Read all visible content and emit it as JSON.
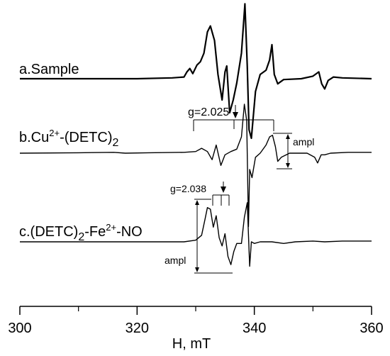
{
  "chart_data": {
    "type": "line",
    "title": "",
    "xlabel": "H, mT",
    "ylabel": "",
    "xlim": [
      300,
      360
    ],
    "x_ticks": [
      300,
      320,
      340,
      360
    ],
    "x_tick_labels": [
      "300",
      "320",
      "340",
      "360"
    ],
    "grid": false,
    "legend": "none",
    "series": [
      {
        "name": "a.Sample",
        "label_parts": [
          "a.Sample"
        ],
        "points": [
          [
            300,
            0
          ],
          [
            310,
            0
          ],
          [
            320,
            0
          ],
          [
            326,
            0.01
          ],
          [
            328,
            0.02
          ],
          [
            328.5,
            0.08
          ],
          [
            329,
            0.12
          ],
          [
            329.5,
            0.06
          ],
          [
            330.2,
            0.16
          ],
          [
            330.8,
            0.2
          ],
          [
            331.4,
            0.3
          ],
          [
            332,
            0.55
          ],
          [
            332.5,
            0.62
          ],
          [
            333.2,
            0.45
          ],
          [
            333.8,
            0.05
          ],
          [
            334.5,
            -0.25
          ],
          [
            335,
            0.08
          ],
          [
            335.3,
            0.15
          ],
          [
            335.8,
            -0.4
          ],
          [
            336.4,
            -0.25
          ],
          [
            337,
            -0.05
          ],
          [
            337.8,
            0.3
          ],
          [
            338.4,
            0.88
          ],
          [
            338.8,
            0.15
          ],
          [
            339.1,
            -0.6
          ],
          [
            339.5,
            -0.7
          ],
          [
            340.2,
            -0.15
          ],
          [
            341,
            0.05
          ],
          [
            342,
            0.1
          ],
          [
            342.6,
            0.22
          ],
          [
            343,
            0.4
          ],
          [
            343.4,
            0.05
          ],
          [
            344,
            -0.06
          ],
          [
            345,
            -0.01
          ],
          [
            348,
            0
          ],
          [
            350,
            0.03
          ],
          [
            351,
            0.08
          ],
          [
            351.5,
            -0.06
          ],
          [
            352,
            -0.12
          ],
          [
            352.6,
            -0.02
          ],
          [
            353.5,
            0.02
          ],
          [
            355,
            0.01
          ],
          [
            360,
            0
          ]
        ]
      },
      {
        "name": "b.Cu2+-(DETC)2",
        "label_parts": [
          "b.Cu",
          "2+",
          "-(DETC)",
          "2"
        ],
        "points": [
          [
            300,
            0
          ],
          [
            310,
            0.005
          ],
          [
            316,
            0.01
          ],
          [
            318,
            0
          ],
          [
            322,
            0.005
          ],
          [
            328,
            0.01
          ],
          [
            330,
            0.02
          ],
          [
            331,
            0.06
          ],
          [
            332,
            0.02
          ],
          [
            332.8,
            -0.08
          ],
          [
            333.5,
            0.1
          ],
          [
            334.3,
            -0.15
          ],
          [
            335,
            -0.02
          ],
          [
            336,
            0.02
          ],
          [
            337,
            0.05
          ],
          [
            337.8,
            0.2
          ],
          [
            338.3,
            0.6
          ],
          [
            338.7,
            0.4
          ],
          [
            339,
            -0.9
          ],
          [
            339.2,
            -0.2
          ],
          [
            339.6,
            -0.3
          ],
          [
            340.2,
            -0.05
          ],
          [
            341,
            0
          ],
          [
            342,
            0.1
          ],
          [
            342.6,
            0.2
          ],
          [
            343.1,
            0.22
          ],
          [
            343.6,
            0.08
          ],
          [
            344,
            -0.1
          ],
          [
            344.6,
            -0.05
          ],
          [
            346,
            0
          ],
          [
            349,
            0
          ],
          [
            350.3,
            -0.05
          ],
          [
            350.8,
            -0.12
          ],
          [
            351.4,
            -0.02
          ],
          [
            352,
            -0.02
          ],
          [
            353,
            0
          ],
          [
            356,
            0.01
          ],
          [
            360,
            0.01
          ]
        ]
      },
      {
        "name": "c.(DETC)2-Fe2+-NO",
        "label_parts": [
          "c.(DETC)",
          "2",
          "-Fe",
          "2+",
          "-NO"
        ],
        "points": [
          [
            300,
            0
          ],
          [
            320,
            0
          ],
          [
            328,
            0
          ],
          [
            330,
            0.02
          ],
          [
            331,
            0.08
          ],
          [
            331.6,
            0.28
          ],
          [
            332,
            0.42
          ],
          [
            332.5,
            0.4
          ],
          [
            333,
            0.18
          ],
          [
            333.5,
            0.32
          ],
          [
            334,
            0.05
          ],
          [
            334.5,
            -0.05
          ],
          [
            335,
            0.1
          ],
          [
            335.5,
            -0.18
          ],
          [
            336,
            -0.28
          ],
          [
            336.5,
            -0.12
          ],
          [
            337,
            -0.02
          ],
          [
            337.8,
            -0.02
          ],
          [
            338.3,
            0.3
          ],
          [
            338.8,
            0.48
          ],
          [
            339.1,
            -0.1
          ],
          [
            339.2,
            -0.3
          ],
          [
            339.5,
            0
          ],
          [
            340,
            -0.02
          ],
          [
            341,
            0
          ],
          [
            343,
            0
          ],
          [
            345,
            -0.02
          ],
          [
            347,
            0
          ],
          [
            350,
            0.01
          ],
          [
            352,
            0
          ],
          [
            355,
            0.01
          ],
          [
            360,
            0.01
          ]
        ]
      }
    ],
    "annotations": [
      {
        "text": "g=2.025",
        "series": "b.Cu2+-(DETC)2"
      },
      {
        "text": "ampl",
        "series": "b.Cu2+-(DETC)2"
      },
      {
        "text": "g=2.038",
        "series": "c.(DETC)2-Fe2+-NO"
      },
      {
        "text": "ampl",
        "series": "c.(DETC)2-Fe2+-NO"
      }
    ]
  }
}
